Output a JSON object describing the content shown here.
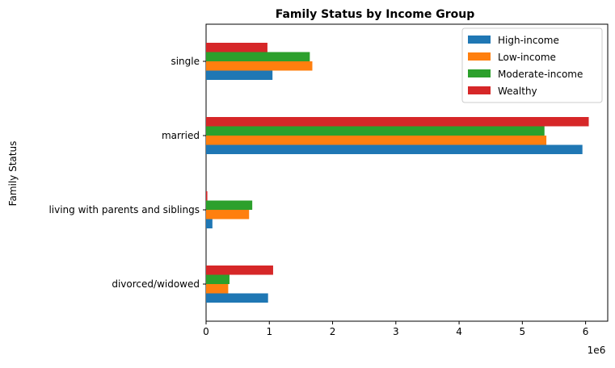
{
  "chart_data": {
    "type": "bar",
    "orientation": "horizontal",
    "title": "Family Status by Income Group",
    "xlabel": "",
    "ylabel": "Family Status",
    "x_scale_label": "1e6",
    "xlim": [
      0,
      6350000
    ],
    "x_ticks": [
      0,
      1,
      2,
      3,
      4,
      5,
      6
    ],
    "x_tick_multiplier": 1000000,
    "categories": [
      "divorced/widowed",
      "living with parents and siblings",
      "married",
      "single"
    ],
    "series": [
      {
        "name": "High-income",
        "color": "#1f77b4",
        "values": [
          980000,
          100000,
          5950000,
          1050000
        ]
      },
      {
        "name": "Low-income",
        "color": "#ff7f0e",
        "values": [
          350000,
          680000,
          5380000,
          1680000
        ]
      },
      {
        "name": "Moderate-income",
        "color": "#2ca02c",
        "values": [
          370000,
          730000,
          5350000,
          1640000
        ]
      },
      {
        "name": "Wealthy",
        "color": "#d62728",
        "values": [
          1060000,
          20000,
          6050000,
          970000
        ]
      }
    ],
    "legend_position": "top-right",
    "grid": false
  }
}
